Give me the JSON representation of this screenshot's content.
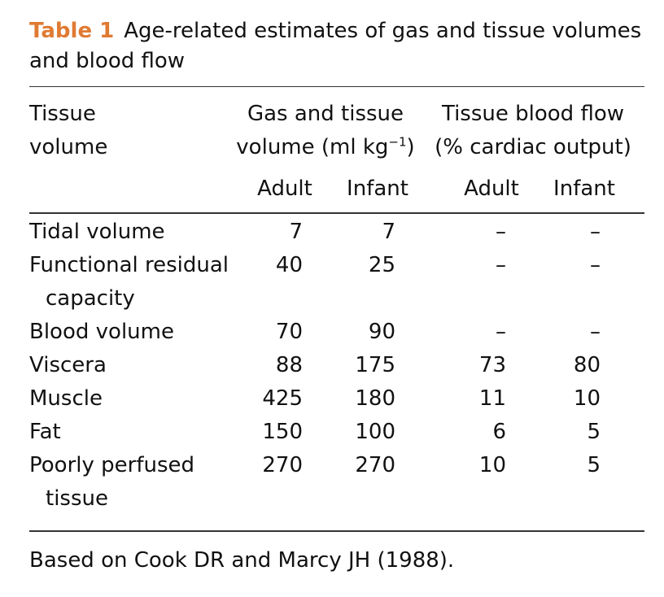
{
  "caption": {
    "label": "Table 1",
    "title": "Age-related estimates of gas and tissue volumes and blood flow"
  },
  "header": {
    "col0_line1": "Tissue",
    "col0_line2": "volume",
    "group1_line1": "Gas and tissue",
    "group1_line2_pre": "volume (ml kg",
    "group1_line2_sup": "−1",
    "group1_line2_post": ")",
    "group2_line1": "Tissue blood flow",
    "group2_line2": "(% cardiac output)",
    "sub": [
      "Adult",
      "Infant",
      "Adult",
      "Infant"
    ]
  },
  "rows": [
    {
      "name": "Tidal volume",
      "name2": "",
      "vals": [
        "7",
        "7",
        "–",
        "–"
      ]
    },
    {
      "name": "Functional residual",
      "name2": "capacity",
      "vals": [
        "40",
        "25",
        "–",
        "–"
      ]
    },
    {
      "name": "Blood volume",
      "name2": "",
      "vals": [
        "70",
        "90",
        "–",
        "–"
      ]
    },
    {
      "name": "Viscera",
      "name2": "",
      "vals": [
        "88",
        "175",
        "73",
        "80"
      ]
    },
    {
      "name": "Muscle",
      "name2": "",
      "vals": [
        "425",
        "180",
        "11",
        "10"
      ]
    },
    {
      "name": "Fat",
      "name2": "",
      "vals": [
        "150",
        "100",
        "6",
        "5"
      ]
    },
    {
      "name": "Poorly perfused",
      "name2": "tissue",
      "vals": [
        "270",
        "270",
        "10",
        "5"
      ]
    }
  ],
  "footnote": "Based on Cook DR and Marcy JH (1988)."
}
